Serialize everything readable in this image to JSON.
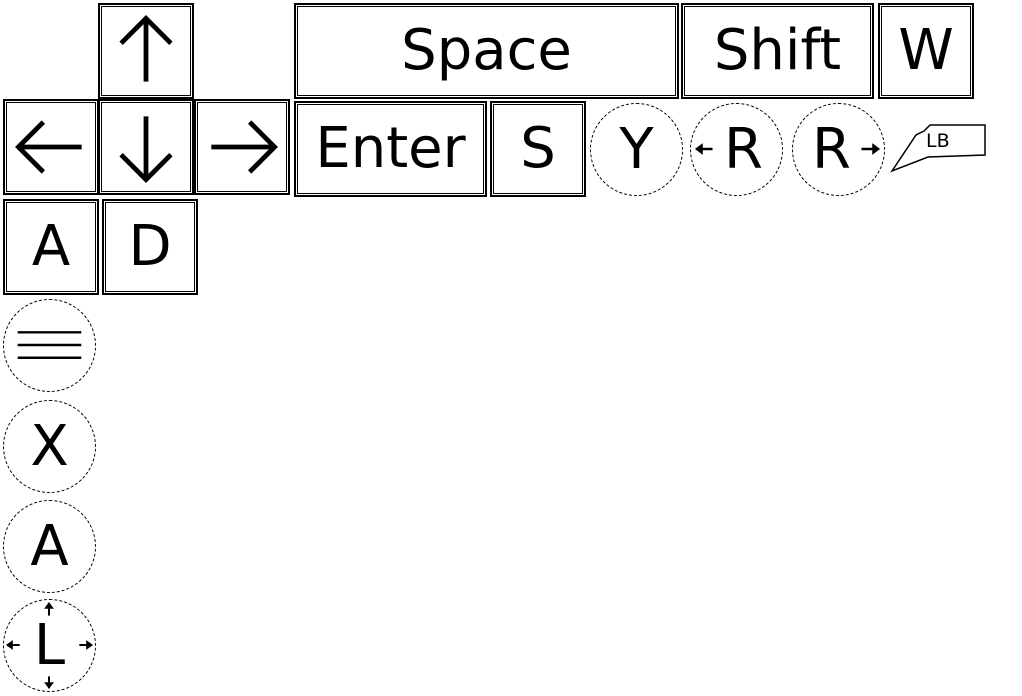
{
  "controls": {
    "arrow_keys": {
      "up_icon": "arrow-up-icon",
      "down_icon": "arrow-down-icon",
      "left_icon": "arrow-left-icon",
      "right_icon": "arrow-right-icon"
    },
    "keys": {
      "space": "Space",
      "shift": "Shift",
      "w": "W",
      "enter": "Enter",
      "s": "S",
      "a": "A",
      "d": "D"
    },
    "gamepad": {
      "y": "Y",
      "r_left": "R",
      "r_right": "R",
      "lb": "LB",
      "menu_icon": "menu-icon",
      "x": "X",
      "a": "A",
      "l_stick": "L"
    }
  }
}
